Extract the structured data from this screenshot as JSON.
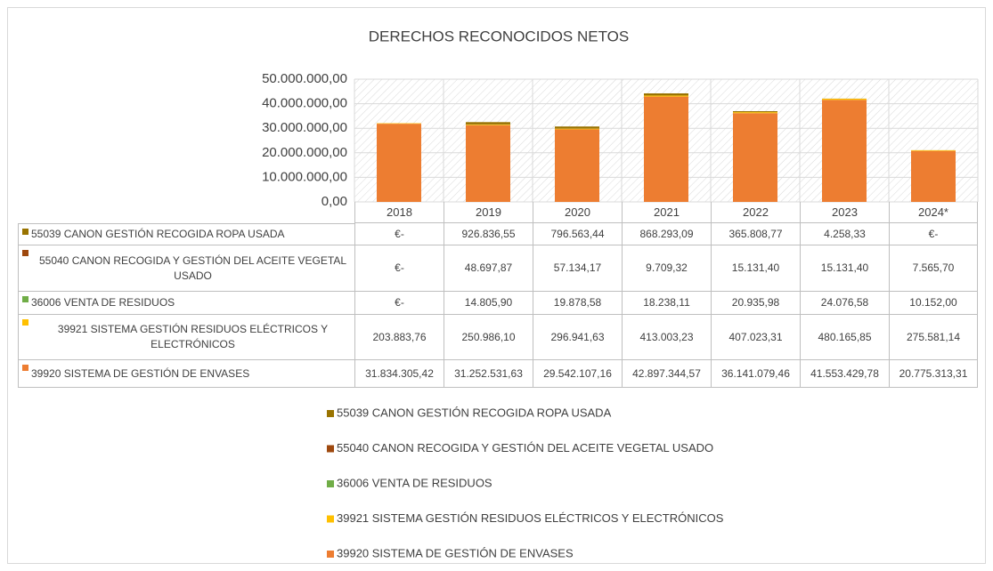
{
  "chart_data": {
    "type": "bar",
    "stacked": true,
    "title": "DERECHOS RECONOCIDOS NETOS",
    "categories": [
      "2018",
      "2019",
      "2020",
      "2021",
      "2022",
      "2023",
      "2024*"
    ],
    "series": [
      {
        "name": "39920  SISTEMA DE GESTIÓN DE ENVASES",
        "color": "#ed7d31",
        "values": [
          31834305.42,
          31252531.63,
          29542107.16,
          42897344.57,
          36141079.46,
          41553429.78,
          20775313.31
        ],
        "value_labels": [
          "31.834.305,42",
          "31.252.531,63",
          "29.542.107,16",
          "42.897.344,57",
          "36.141.079,46",
          "41.553.429,78",
          "20.775.313,31"
        ]
      },
      {
        "name": "39921  SISTEMA GESTIÓN RESIDUOS ELÉCTRICOS Y ELECTRÓNICOS",
        "color": "#ffc000",
        "values": [
          203883.76,
          250986.1,
          296941.63,
          413003.23,
          407023.31,
          480165.85,
          275581.14
        ],
        "value_labels": [
          "203.883,76",
          "250.986,10",
          "296.941,63",
          "413.003,23",
          "407.023,31",
          "480.165,85",
          "275.581,14"
        ]
      },
      {
        "name": "36006  VENTA DE RESIDUOS",
        "color": "#70ad47",
        "values": [
          0,
          14805.9,
          19878.58,
          18238.11,
          20935.98,
          24076.58,
          10152.0
        ],
        "value_labels": [
          "€-",
          "14.805,90",
          "19.878,58",
          "18.238,11",
          "20.935,98",
          "24.076,58",
          "10.152,00"
        ]
      },
      {
        "name": "55040  CANON RECOGIDA Y GESTIÓN DEL ACEITE VEGETAL USADO",
        "color": "#9e480e",
        "values": [
          0,
          48697.87,
          57134.17,
          9709.32,
          15131.4,
          15131.4,
          7565.7
        ],
        "value_labels": [
          "€-",
          "48.697,87",
          "57.134,17",
          "9.709,32",
          "15.131,40",
          "15.131,40",
          "7.565,70"
        ]
      },
      {
        "name": "55039  CANON GESTIÓN RECOGIDA ROPA USADA",
        "color": "#997300",
        "values": [
          0,
          926836.55,
          796563.44,
          868293.09,
          365808.77,
          4258.33,
          0
        ],
        "value_labels": [
          "€-",
          "926.836,55",
          "796.563,44",
          "868.293,09",
          "365.808,77",
          "4.258,33",
          "€-"
        ]
      }
    ],
    "ylim": [
      0,
      50000000
    ],
    "yticks": [
      {
        "value": 0,
        "label": "0,00"
      },
      {
        "value": 10000000,
        "label": "10.000.000,00"
      },
      {
        "value": 20000000,
        "label": "20.000.000,00"
      },
      {
        "value": 30000000,
        "label": "30.000.000,00"
      },
      {
        "value": 40000000,
        "label": "40.000.000,00"
      },
      {
        "value": 50000000,
        "label": "50.000.000,00"
      }
    ],
    "grid": true
  }
}
